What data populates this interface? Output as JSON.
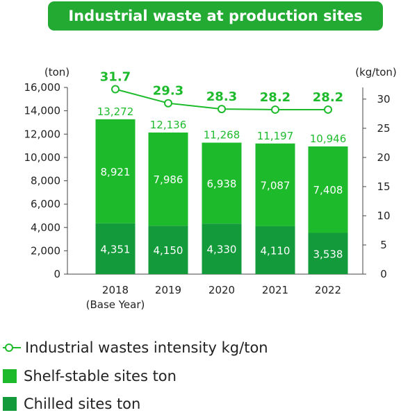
{
  "title": "Industrial waste at production sites",
  "colors": {
    "shelf": "#1dbb2c",
    "chilled": "#139a3a",
    "line": "#1dbb2c",
    "title_bg": "#22aa33",
    "axis": "#444444"
  },
  "chart_data": {
    "type": "bar",
    "categories": [
      "2018",
      "2019",
      "2020",
      "2021",
      "2022"
    ],
    "category_sublabels": [
      "(Base Year)",
      "",
      "",
      "",
      ""
    ],
    "left_unit": "(ton)",
    "right_unit": "(kg/ton)",
    "ylim_left": [
      0,
      16000
    ],
    "yticks_left": [
      "16,000",
      "14,000",
      "12,000",
      "10,000",
      "8,000",
      "6,000",
      "4,000",
      "2,000",
      "0"
    ],
    "ylim_right": [
      0,
      32
    ],
    "yticks_right": [
      "30",
      "25",
      "20",
      "15",
      "10",
      "5",
      "0"
    ],
    "series": [
      {
        "name": "Chilled sites ton",
        "kind": "bar",
        "values": [
          4351,
          4150,
          4330,
          4110,
          3538
        ],
        "labels": [
          "4,351",
          "4,150",
          "4,330",
          "4,110",
          "3,538"
        ]
      },
      {
        "name": "Shelf-stable sites ton",
        "kind": "bar",
        "values": [
          8921,
          7986,
          6938,
          7087,
          7408
        ],
        "labels": [
          "8,921",
          "7,986",
          "6,938",
          "7,087",
          "7,408"
        ]
      },
      {
        "name": "Industrial wastes intensity kg/ton",
        "kind": "line",
        "axis": "right",
        "values": [
          31.7,
          29.3,
          28.3,
          28.2,
          28.2
        ],
        "labels": [
          "31.7",
          "29.3",
          "28.3",
          "28.2",
          "28.2"
        ]
      }
    ],
    "totals": [
      13272,
      12136,
      11268,
      11197,
      10946
    ],
    "total_labels": [
      "13,272",
      "12,136",
      "11,268",
      "11,197",
      "10,946"
    ],
    "grid": false
  },
  "legend": {
    "line_label": "Industrial wastes intensity kg/ton",
    "shelf_label": "Shelf-stable sites ton",
    "chilled_label": "Chilled sites ton"
  }
}
